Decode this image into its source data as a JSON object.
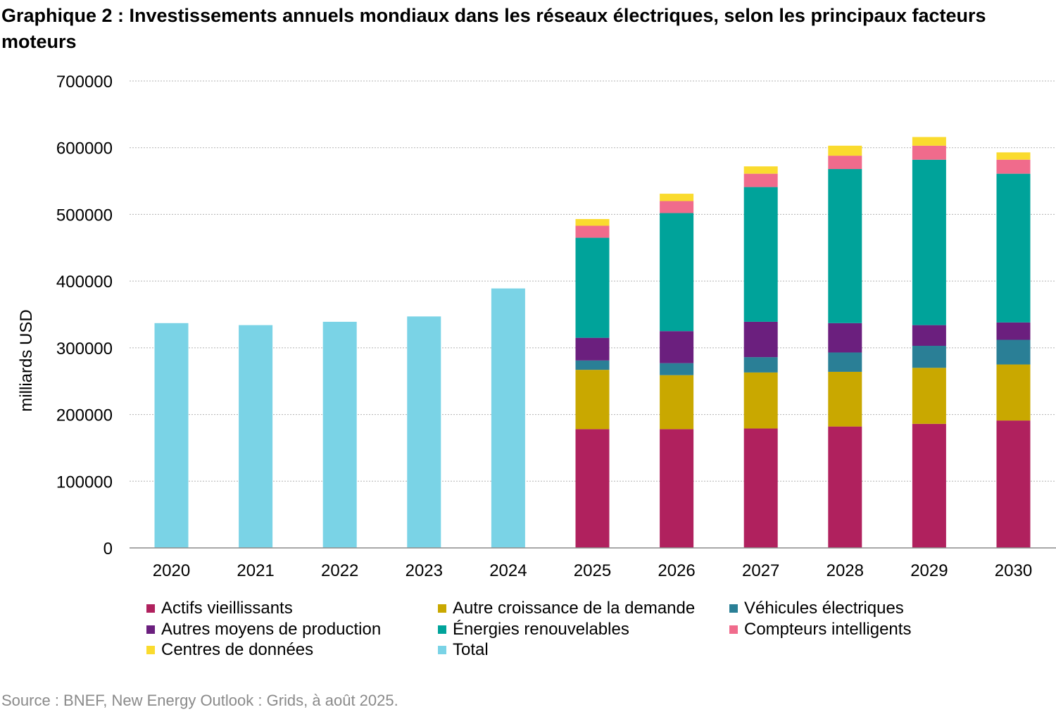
{
  "chart_data": {
    "type": "bar",
    "stacked": true,
    "title": "Graphique 2 : Investissements annuels mondiaux dans les réseaux électriques, selon les principaux facteurs moteurs",
    "xlabel": "",
    "ylabel": "milliards USD",
    "ylim": [
      0,
      700000
    ],
    "yticks": [
      "0",
      "100000",
      "200000",
      "300000",
      "400000",
      "500000",
      "600000",
      "700000"
    ],
    "grid": true,
    "legend_position": "bottom",
    "categories": [
      "2020",
      "2021",
      "2022",
      "2023",
      "2024",
      "2025",
      "2026",
      "2027",
      "2028",
      "2029",
      "2030"
    ],
    "series": [
      {
        "name": "Actifs vieillissants",
        "color": "#B0215E",
        "values": [
          0,
          0,
          0,
          0,
          0,
          178000,
          178000,
          179000,
          182000,
          186000,
          191000
        ]
      },
      {
        "name": "Autre croissance de la demande",
        "color": "#C9A800",
        "values": [
          0,
          0,
          0,
          0,
          0,
          89000,
          81000,
          84000,
          82000,
          84000,
          84000
        ]
      },
      {
        "name": "Véhicules électriques",
        "color": "#2A7F96",
        "values": [
          0,
          0,
          0,
          0,
          0,
          14000,
          18000,
          23000,
          29000,
          33000,
          37000
        ]
      },
      {
        "name": "Autres moyens de production",
        "color": "#6B1F7E",
        "values": [
          0,
          0,
          0,
          0,
          0,
          34000,
          48000,
          53000,
          44000,
          31000,
          26000
        ]
      },
      {
        "name": "Énergies renouvelables",
        "color": "#00A39A",
        "values": [
          0,
          0,
          0,
          0,
          0,
          150000,
          177000,
          202000,
          231000,
          248000,
          223000
        ]
      },
      {
        "name": "Compteurs intelligents",
        "color": "#F06B8C",
        "values": [
          0,
          0,
          0,
          0,
          0,
          18000,
          18000,
          20000,
          20000,
          21000,
          21000
        ]
      },
      {
        "name": "Centres de données",
        "color": "#FADB2E",
        "values": [
          0,
          0,
          0,
          0,
          0,
          10000,
          11000,
          11000,
          15000,
          13000,
          11000
        ]
      },
      {
        "name": "Total",
        "color": "#7AD3E6",
        "values": [
          337000,
          334000,
          339000,
          347000,
          389000,
          0,
          0,
          0,
          0,
          0,
          0
        ]
      }
    ]
  },
  "source": "Source : BNEF, New Energy Outlook : Grids, à août 2025."
}
